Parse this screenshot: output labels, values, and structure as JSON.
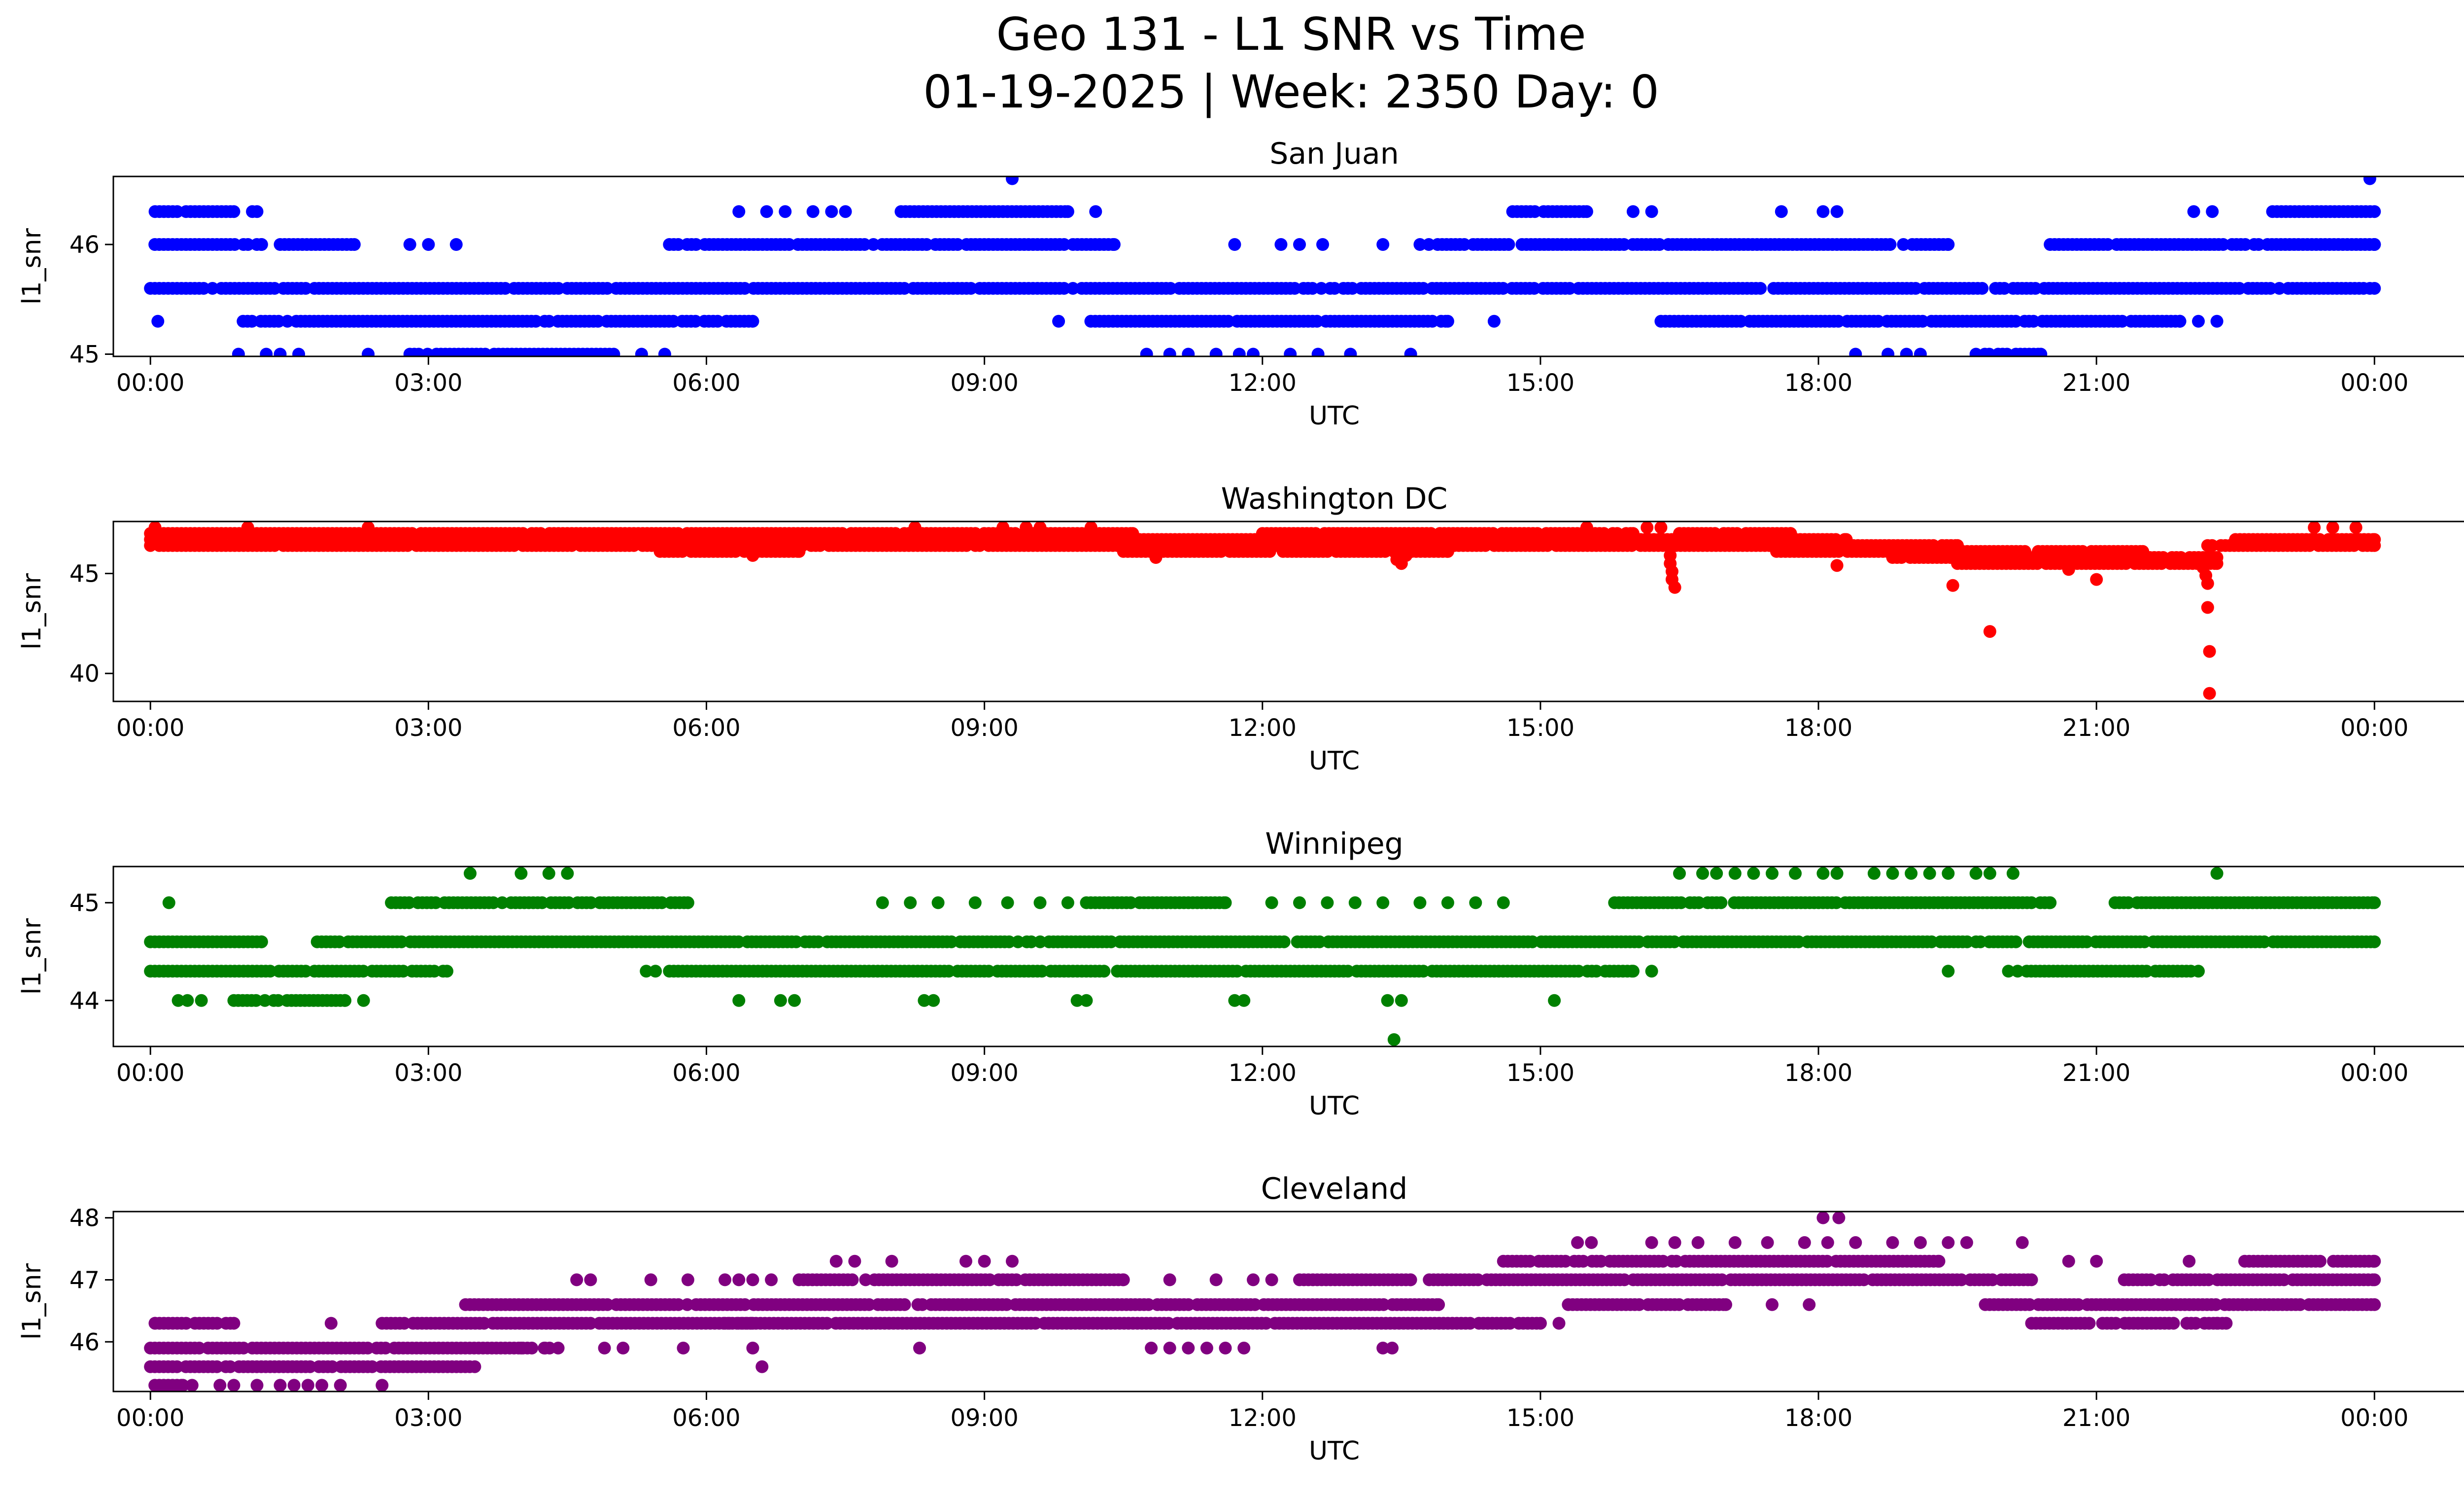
{
  "title": {
    "line1": "Geo 131 - L1 SNR vs Time",
    "line2": "01-19-2025 | Week: 2350 Day: 0"
  },
  "chart_data": [
    {
      "type": "scatter",
      "title": "San Juan",
      "xlabel": "UTC",
      "ylabel": "l1_snr",
      "color": "#0000ff",
      "xlim": [
        -0.4,
        25.95
      ],
      "ylim": [
        44.98,
        46.62
      ],
      "x_ticks": [
        0,
        3,
        6,
        9,
        12,
        15,
        18,
        21,
        24
      ],
      "x_tick_labels": [
        "00:00",
        "03:00",
        "06:00",
        "09:00",
        "12:00",
        "15:00",
        "18:00",
        "21:00",
        "00:00"
      ],
      "y_ticks": [
        45,
        46
      ],
      "y_tick_labels": [
        "45",
        "46"
      ],
      "bands": [
        {
          "y": 45.6,
          "ranges": [
            [
              0.0,
              24.0
            ]
          ]
        },
        {
          "y": 46.0,
          "ranges": [
            [
              0.0,
              1.2
            ],
            [
              1.4,
              2.2
            ],
            [
              5.6,
              10.4
            ],
            [
              13.7,
              19.4
            ],
            [
              20.5,
              24.0
            ]
          ]
        },
        {
          "y": 46.3,
          "ranges": [
            [
              0.05,
              0.9
            ],
            [
              8.1,
              9.9
            ],
            [
              14.7,
              15.5
            ],
            [
              22.9,
              24.0
            ]
          ]
        },
        {
          "y": 45.3,
          "ranges": [
            [
              1.0,
              6.5
            ],
            [
              10.1,
              14.0
            ],
            [
              16.3,
              21.9
            ]
          ]
        },
        {
          "y": 45.0,
          "ranges": [
            [
              2.8,
              5.0
            ],
            [
              19.7,
              20.4
            ]
          ]
        }
      ],
      "sparse": [
        [
          0.08,
          45.3
        ],
        [
          1.1,
          46.3
        ],
        [
          1.15,
          46.3
        ],
        [
          6.35,
          46.3
        ],
        [
          6.65,
          46.3
        ],
        [
          6.85,
          46.3
        ],
        [
          7.15,
          46.3
        ],
        [
          7.35,
          46.3
        ],
        [
          7.5,
          46.3
        ],
        [
          10.2,
          46.3
        ],
        [
          2.8,
          46.0
        ],
        [
          3.0,
          46.0
        ],
        [
          3.3,
          46.0
        ],
        [
          11.7,
          46.0
        ],
        [
          12.2,
          46.0
        ],
        [
          12.4,
          46.0
        ],
        [
          12.65,
          46.0
        ],
        [
          13.3,
          46.0
        ],
        [
          9.3,
          46.6
        ],
        [
          23.95,
          46.6
        ],
        [
          16.0,
          46.3
        ],
        [
          16.2,
          46.3
        ],
        [
          17.6,
          46.3
        ],
        [
          18.05,
          46.3
        ],
        [
          18.2,
          46.3
        ],
        [
          22.05,
          46.3
        ],
        [
          22.25,
          46.3
        ],
        [
          9.8,
          45.3
        ],
        [
          14.5,
          45.3
        ],
        [
          21.9,
          45.3
        ],
        [
          22.1,
          45.3
        ],
        [
          22.3,
          45.3
        ],
        [
          23.95,
          45.6
        ],
        [
          24.0,
          46.0
        ],
        [
          0.95,
          45.0
        ],
        [
          1.25,
          45.0
        ],
        [
          1.4,
          45.0
        ],
        [
          1.6,
          45.0
        ],
        [
          2.35,
          45.0
        ],
        [
          5.3,
          45.0
        ],
        [
          5.55,
          45.0
        ],
        [
          10.75,
          45.0
        ],
        [
          11.0,
          45.0
        ],
        [
          11.2,
          45.0
        ],
        [
          11.5,
          45.0
        ],
        [
          11.75,
          45.0
        ],
        [
          11.9,
          45.0
        ],
        [
          12.3,
          45.0
        ],
        [
          12.6,
          45.0
        ],
        [
          12.95,
          45.0
        ],
        [
          13.6,
          45.0
        ],
        [
          18.4,
          45.0
        ],
        [
          18.75,
          45.0
        ],
        [
          18.95,
          45.0
        ],
        [
          19.1,
          45.0
        ]
      ]
    },
    {
      "type": "scatter",
      "title": "Washington DC",
      "xlabel": "UTC",
      "ylabel": "l1_snr",
      "color": "#ff0000",
      "xlim": [
        -0.4,
        25.95
      ],
      "ylim": [
        38.6,
        47.6
      ],
      "x_ticks": [
        0,
        3,
        6,
        9,
        12,
        15,
        18,
        21,
        24
      ],
      "x_tick_labels": [
        "00:00",
        "03:00",
        "06:00",
        "09:00",
        "12:00",
        "15:00",
        "18:00",
        "21:00",
        "00:00"
      ],
      "y_ticks": [
        40,
        45
      ],
      "y_tick_labels": [
        "40",
        "45"
      ],
      "bands": [
        {
          "y": 47.0,
          "ranges": [
            [
              0.0,
              10.6
            ],
            [
              12.0,
              16.0
            ],
            [
              16.5,
              17.7
            ]
          ]
        },
        {
          "y": 46.7,
          "ranges": [
            [
              0.0,
              18.3
            ],
            [
              22.5,
              24.0
            ]
          ]
        },
        {
          "y": 46.4,
          "ranges": [
            [
              0.0,
              19.5
            ],
            [
              22.2,
              24.0
            ]
          ]
        },
        {
          "y": 46.1,
          "ranges": [
            [
              5.5,
              7.0
            ],
            [
              10.5,
              14.0
            ],
            [
              17.5,
              21.5
            ]
          ]
        },
        {
          "y": 45.8,
          "ranges": [
            [
              18.8,
              22.3
            ]
          ]
        },
        {
          "y": 45.5,
          "ranges": [
            [
              19.5,
              22.3
            ]
          ]
        }
      ],
      "sparse": [
        [
          0.05,
          47.3
        ],
        [
          1.05,
          47.3
        ],
        [
          2.35,
          47.3
        ],
        [
          8.25,
          47.3
        ],
        [
          9.2,
          47.3
        ],
        [
          9.45,
          47.3
        ],
        [
          9.6,
          47.3
        ],
        [
          10.15,
          47.3
        ],
        [
          15.5,
          47.3
        ],
        [
          16.15,
          47.3
        ],
        [
          16.3,
          47.3
        ],
        [
          23.35,
          47.3
        ],
        [
          23.55,
          47.3
        ],
        [
          23.8,
          47.3
        ],
        [
          13.45,
          45.7
        ],
        [
          13.5,
          45.5
        ],
        [
          13.55,
          45.9
        ],
        [
          10.85,
          45.8
        ],
        [
          6.5,
          45.9
        ],
        [
          16.4,
          45.9
        ],
        [
          16.4,
          45.5
        ],
        [
          16.42,
          45.1
        ],
        [
          16.42,
          44.7
        ],
        [
          16.45,
          44.3
        ],
        [
          18.2,
          45.4
        ],
        [
          19.45,
          44.4
        ],
        [
          19.85,
          42.1
        ],
        [
          20.7,
          45.2
        ],
        [
          21.0,
          44.7
        ],
        [
          22.15,
          45.6
        ],
        [
          22.15,
          45.3
        ],
        [
          22.18,
          44.9
        ],
        [
          22.2,
          44.5
        ],
        [
          22.2,
          43.3
        ],
        [
          22.22,
          41.1
        ],
        [
          22.22,
          39.0
        ]
      ]
    },
    {
      "type": "scatter",
      "title": "Winnipeg",
      "xlabel": "UTC",
      "ylabel": "l1_snr",
      "color": "#008000",
      "xlim": [
        -0.4,
        25.95
      ],
      "ylim": [
        43.53,
        45.37
      ],
      "x_ticks": [
        0,
        3,
        6,
        9,
        12,
        15,
        18,
        21,
        24
      ],
      "x_tick_labels": [
        "00:00",
        "03:00",
        "06:00",
        "09:00",
        "12:00",
        "15:00",
        "18:00",
        "21:00",
        "00:00"
      ],
      "y_ticks": [
        44,
        45
      ],
      "y_tick_labels": [
        "44",
        "45"
      ],
      "bands": [
        {
          "y": 44.6,
          "ranges": [
            [
              0.0,
              1.2
            ],
            [
              1.8,
              24.0
            ]
          ]
        },
        {
          "y": 44.3,
          "ranges": [
            [
              0.0,
              3.2
            ],
            [
              5.6,
              16.0
            ],
            [
              20.2,
              22.1
            ]
          ]
        },
        {
          "y": 45.0,
          "ranges": [
            [
              2.6,
              5.8
            ],
            [
              10.1,
              11.6
            ],
            [
              15.8,
              20.5
            ],
            [
              21.2,
              24.0
            ]
          ]
        },
        {
          "y": 44.0,
          "ranges": [
            [
              0.9,
              2.1
            ]
          ]
        }
      ],
      "sparse": [
        [
          0.2,
          45.0
        ],
        [
          3.45,
          45.3
        ],
        [
          4.0,
          45.3
        ],
        [
          4.3,
          45.3
        ],
        [
          4.5,
          45.3
        ],
        [
          7.9,
          45.0
        ],
        [
          8.2,
          45.0
        ],
        [
          8.5,
          45.0
        ],
        [
          8.9,
          45.0
        ],
        [
          9.25,
          45.0
        ],
        [
          9.6,
          45.0
        ],
        [
          9.9,
          45.0
        ],
        [
          12.1,
          45.0
        ],
        [
          12.4,
          45.0
        ],
        [
          12.7,
          45.0
        ],
        [
          13.0,
          45.0
        ],
        [
          13.3,
          45.0
        ],
        [
          13.7,
          45.0
        ],
        [
          14.0,
          45.0
        ],
        [
          14.3,
          45.0
        ],
        [
          14.6,
          45.0
        ],
        [
          5.35,
          44.3
        ],
        [
          5.45,
          44.3
        ],
        [
          16.2,
          44.3
        ],
        [
          19.4,
          44.3
        ],
        [
          20.05,
          44.3
        ],
        [
          20.15,
          44.3
        ],
        [
          0.3,
          44.0
        ],
        [
          0.4,
          44.0
        ],
        [
          0.55,
          44.0
        ],
        [
          2.3,
          44.0
        ],
        [
          6.35,
          44.0
        ],
        [
          6.8,
          44.0
        ],
        [
          6.95,
          44.0
        ],
        [
          8.35,
          44.0
        ],
        [
          8.45,
          44.0
        ],
        [
          10.0,
          44.0
        ],
        [
          10.1,
          44.0
        ],
        [
          11.7,
          44.0
        ],
        [
          11.8,
          44.0
        ],
        [
          13.35,
          44.0
        ],
        [
          13.5,
          44.0
        ],
        [
          15.15,
          44.0
        ],
        [
          13.42,
          43.6
        ],
        [
          16.5,
          45.3
        ],
        [
          16.75,
          45.3
        ],
        [
          16.9,
          45.3
        ],
        [
          17.1,
          45.3
        ],
        [
          17.3,
          45.3
        ],
        [
          17.5,
          45.3
        ],
        [
          17.75,
          45.3
        ],
        [
          18.05,
          45.3
        ],
        [
          18.2,
          45.3
        ],
        [
          18.6,
          45.3
        ],
        [
          18.8,
          45.3
        ],
        [
          19.0,
          45.3
        ],
        [
          19.2,
          45.3
        ],
        [
          19.4,
          45.3
        ],
        [
          19.7,
          45.3
        ],
        [
          19.85,
          45.3
        ],
        [
          20.1,
          45.3
        ],
        [
          22.3,
          45.3
        ]
      ]
    },
    {
      "type": "scatter",
      "title": "Cleveland",
      "xlabel": "UTC",
      "ylabel": "l1_snr",
      "color": "#800080",
      "xlim": [
        -0.4,
        25.95
      ],
      "ylim": [
        45.2,
        48.1
      ],
      "x_ticks": [
        0,
        3,
        6,
        9,
        12,
        15,
        18,
        21,
        24
      ],
      "x_tick_labels": [
        "00:00",
        "03:00",
        "06:00",
        "09:00",
        "12:00",
        "15:00",
        "18:00",
        "21:00",
        "00:00"
      ],
      "y_ticks": [
        46,
        47,
        48
      ],
      "y_tick_labels": [
        "46",
        "47",
        "48"
      ],
      "bands": [
        {
          "y": 45.6,
          "ranges": [
            [
              0.0,
              3.5
            ]
          ]
        },
        {
          "y": 45.9,
          "ranges": [
            [
              0.0,
              4.4
            ]
          ]
        },
        {
          "y": 46.3,
          "ranges": [
            [
              0.05,
              0.9
            ],
            [
              2.5,
              6.5
            ]
          ]
        },
        {
          "y": 46.6,
          "ranges": [
            [
              3.4,
              13.9
            ],
            [
              15.3,
              17.0
            ],
            [
              19.8,
              24.0
            ]
          ]
        },
        {
          "y": 47.0,
          "ranges": [
            [
              7.0,
              10.5
            ],
            [
              12.4,
              13.6
            ],
            [
              13.8,
              20.3
            ],
            [
              21.3,
              24.0
            ]
          ]
        },
        {
          "y": 47.3,
          "ranges": [
            [
              14.6,
              19.3
            ],
            [
              22.6,
              24.0
            ]
          ]
        },
        {
          "y": 46.3,
          "ranges": [
            [
              6.2,
              15.0
            ],
            [
              20.3,
              22.4
            ]
          ]
        },
        {
          "y": 45.3,
          "ranges": [
            [
              0.0,
              0.35
            ]
          ]
        }
      ],
      "sparse": [
        [
          0.45,
          45.3
        ],
        [
          0.75,
          45.3
        ],
        [
          0.9,
          45.3
        ],
        [
          1.15,
          45.3
        ],
        [
          1.4,
          45.3
        ],
        [
          1.55,
          45.3
        ],
        [
          1.7,
          45.3
        ],
        [
          1.85,
          45.3
        ],
        [
          2.05,
          45.3
        ],
        [
          2.5,
          45.3
        ],
        [
          1.95,
          46.3
        ],
        [
          0.05,
          46.3
        ],
        [
          4.6,
          47.0
        ],
        [
          4.75,
          47.0
        ],
        [
          5.4,
          47.0
        ],
        [
          5.8,
          47.0
        ],
        [
          6.2,
          47.0
        ],
        [
          6.35,
          47.0
        ],
        [
          6.5,
          47.0
        ],
        [
          6.7,
          47.0
        ],
        [
          11.0,
          47.0
        ],
        [
          11.5,
          47.0
        ],
        [
          11.9,
          47.0
        ],
        [
          12.1,
          47.0
        ],
        [
          7.4,
          47.3
        ],
        [
          7.6,
          47.3
        ],
        [
          8.0,
          47.3
        ],
        [
          8.8,
          47.3
        ],
        [
          9.0,
          47.3
        ],
        [
          9.3,
          47.3
        ],
        [
          15.4,
          47.6
        ],
        [
          15.55,
          47.6
        ],
        [
          16.2,
          47.6
        ],
        [
          16.45,
          47.6
        ],
        [
          16.7,
          47.6
        ],
        [
          17.1,
          47.6
        ],
        [
          17.45,
          47.6
        ],
        [
          17.85,
          47.6
        ],
        [
          18.1,
          47.6
        ],
        [
          18.4,
          47.6
        ],
        [
          18.8,
          47.6
        ],
        [
          19.1,
          47.6
        ],
        [
          19.4,
          47.6
        ],
        [
          19.6,
          47.6
        ],
        [
          20.2,
          47.6
        ],
        [
          18.05,
          48.0
        ],
        [
          18.22,
          48.0
        ],
        [
          4.0,
          45.9
        ],
        [
          4.25,
          45.9
        ],
        [
          4.9,
          45.9
        ],
        [
          5.1,
          45.9
        ],
        [
          5.75,
          45.9
        ],
        [
          6.5,
          45.9
        ],
        [
          8.3,
          45.9
        ],
        [
          10.8,
          45.9
        ],
        [
          11.0,
          45.9
        ],
        [
          11.2,
          45.9
        ],
        [
          11.4,
          45.9
        ],
        [
          11.6,
          45.9
        ],
        [
          11.8,
          45.9
        ],
        [
          13.3,
          45.9
        ],
        [
          13.4,
          45.9
        ],
        [
          6.6,
          45.6
        ],
        [
          15.2,
          46.3
        ],
        [
          17.5,
          46.6
        ],
        [
          17.9,
          46.6
        ],
        [
          20.7,
          47.3
        ],
        [
          21.0,
          47.3
        ],
        [
          22.0,
          47.3
        ],
        [
          22.3,
          46.3
        ]
      ]
    }
  ]
}
